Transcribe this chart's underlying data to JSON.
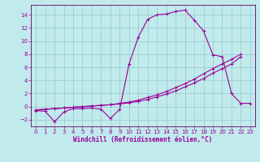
{
  "xlabel": "Windchill (Refroidissement éolien,°C)",
  "background_color": "#c0eaec",
  "grid_color": "#98c8cc",
  "line_color": "#990099",
  "spine_color": "#660066",
  "xlim": [
    -0.5,
    23.5
  ],
  "ylim": [
    -3.0,
    15.5
  ],
  "xticks": [
    0,
    1,
    2,
    3,
    4,
    5,
    6,
    7,
    8,
    9,
    10,
    11,
    12,
    13,
    14,
    15,
    16,
    17,
    18,
    19,
    20,
    21,
    22,
    23
  ],
  "yticks": [
    -2,
    0,
    2,
    4,
    6,
    8,
    10,
    12,
    14
  ],
  "curve1_x": [
    0,
    1,
    2,
    3,
    4,
    5,
    6,
    7,
    8,
    9,
    10,
    11,
    12,
    13,
    14,
    15,
    16,
    17,
    18,
    19,
    20,
    21,
    22,
    23
  ],
  "curve1_y": [
    -0.6,
    -0.7,
    -2.3,
    -0.8,
    -0.3,
    -0.3,
    -0.2,
    -0.4,
    -1.8,
    -0.4,
    6.5,
    10.6,
    13.3,
    14.0,
    14.1,
    14.5,
    14.7,
    13.2,
    11.5,
    7.9,
    7.6,
    2.0,
    0.5,
    0.5
  ],
  "curve2_x": [
    0,
    1,
    2,
    3,
    4,
    5,
    6,
    7,
    8,
    9,
    10,
    11,
    12,
    13,
    14,
    15,
    16,
    17,
    18,
    19,
    20,
    21,
    22
  ],
  "curve2_y": [
    -0.5,
    -0.4,
    -0.3,
    -0.2,
    -0.1,
    0.0,
    0.1,
    0.2,
    0.3,
    0.5,
    0.7,
    1.0,
    1.4,
    1.8,
    2.3,
    2.9,
    3.5,
    4.2,
    5.0,
    5.8,
    6.5,
    7.2,
    8.0
  ],
  "curve3_x": [
    0,
    1,
    2,
    3,
    4,
    5,
    6,
    7,
    8,
    9,
    10,
    11,
    12,
    13,
    14,
    15,
    16,
    17,
    18,
    19,
    20,
    21,
    22
  ],
  "curve3_y": [
    -0.5,
    -0.4,
    -0.3,
    -0.2,
    -0.1,
    0.0,
    0.1,
    0.2,
    0.3,
    0.4,
    0.6,
    0.8,
    1.1,
    1.5,
    1.9,
    2.4,
    3.0,
    3.6,
    4.3,
    5.1,
    5.8,
    6.5,
    7.6
  ],
  "marker": "+",
  "markersize": 3,
  "linewidth": 0.8,
  "tick_fontsize": 5,
  "xlabel_fontsize": 5.5
}
